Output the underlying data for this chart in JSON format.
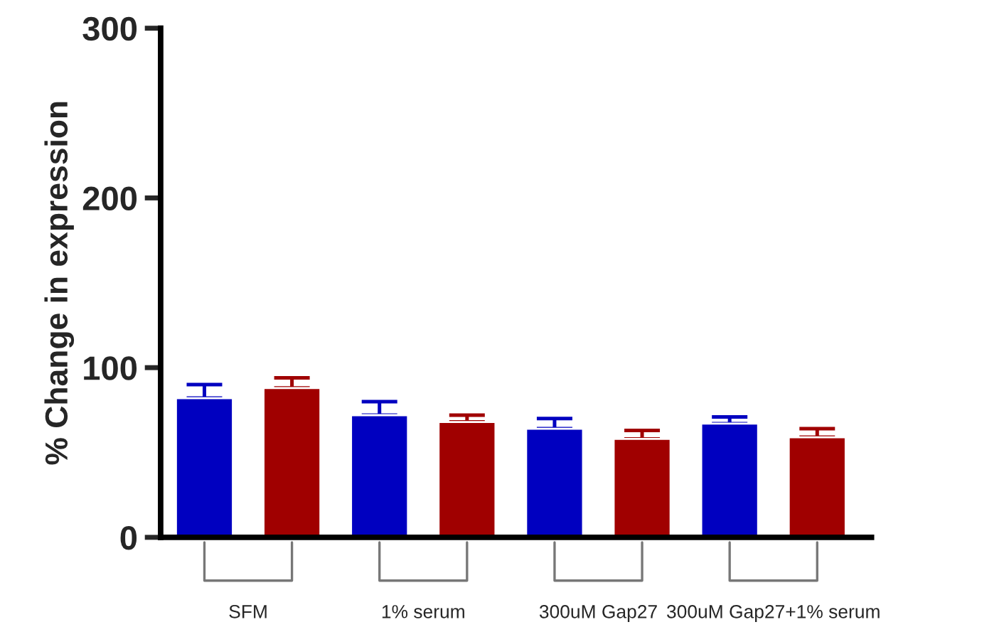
{
  "chart_data": {
    "type": "bar",
    "ylabel": "% Change in expression",
    "categories": [
      "SFM",
      "1% serum",
      "300uM Gap27",
      "300uM Gap27+1% serum"
    ],
    "series": [
      {
        "color": "#0000c0",
        "values": [
          82,
          72,
          64,
          67
        ],
        "errors": [
          [
            82,
            90
          ],
          [
            72,
            80
          ],
          [
            64,
            70
          ],
          [
            67,
            71
          ]
        ]
      },
      {
        "color": "#a00000",
        "values": [
          88,
          68,
          58,
          59
        ],
        "errors": [
          [
            88,
            94
          ],
          [
            68,
            72
          ],
          [
            58,
            63
          ],
          [
            59,
            64
          ]
        ]
      }
    ],
    "ylim": [
      0,
      300
    ],
    "yticks": [
      0,
      100,
      200,
      300
    ],
    "grid": false
  }
}
